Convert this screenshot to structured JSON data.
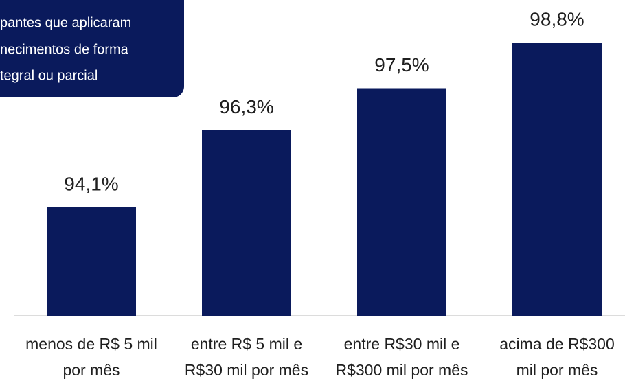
{
  "chart_data": {
    "type": "bar",
    "annotation": [
      "pantes que aplicaram",
      "necimentos de forma",
      "tegral ou parcial"
    ],
    "categories": [
      [
        "menos de R$ 5 mil",
        "por mês"
      ],
      [
        "entre R$ 5 mil e",
        "R$30 mil por mês"
      ],
      [
        "entre R$30 mil e",
        "R$300 mil por mês"
      ],
      [
        "acima de R$300",
        "mil por mês"
      ]
    ],
    "values": [
      94.1,
      96.3,
      97.5,
      98.8
    ],
    "value_labels": [
      "94,1%",
      "96,3%",
      "97,5%",
      "98,8%"
    ],
    "color": "#0a1a5c",
    "ylim": [
      91,
      100
    ]
  }
}
